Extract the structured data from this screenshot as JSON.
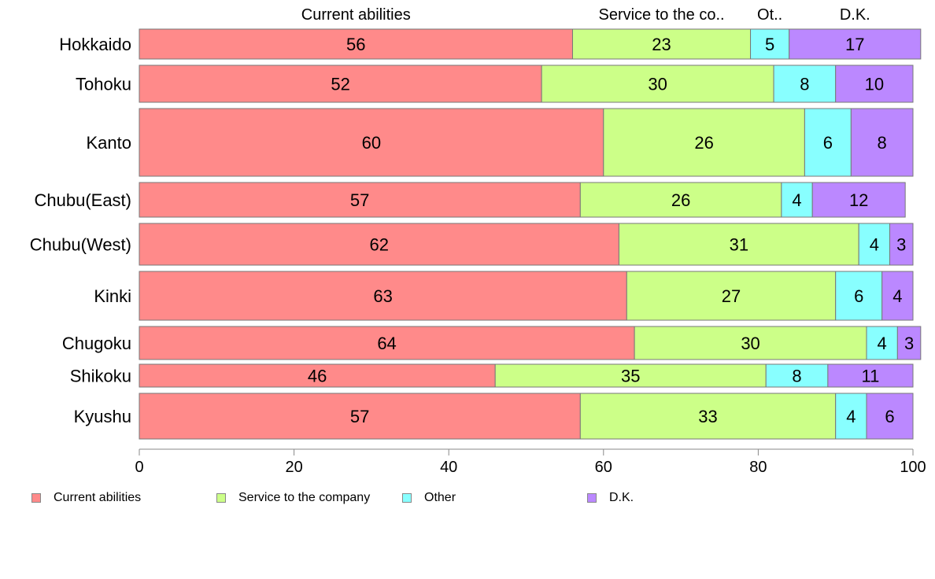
{
  "chart_data": {
    "type": "bar",
    "orientation": "horizontal",
    "stacked": true,
    "categories": [
      "Hokkaido",
      "Tohoku",
      "Kanto",
      "Chubu(East)",
      "Chubu(West)",
      "Kinki",
      "Chugoku",
      "Shikoku",
      "Kyushu"
    ],
    "series": [
      {
        "name": "Current abilities",
        "values": [
          56,
          52,
          60,
          57,
          62,
          63,
          64,
          46,
          57
        ],
        "color": "#ff8a8a"
      },
      {
        "name": "Service to the company",
        "values": [
          23,
          30,
          26,
          26,
          31,
          27,
          30,
          35,
          33
        ],
        "color": "#ccff88"
      },
      {
        "name": "Other",
        "values": [
          5,
          8,
          6,
          4,
          4,
          6,
          4,
          8,
          4
        ],
        "color": "#88ffff"
      },
      {
        "name": "D.K.",
        "values": [
          17,
          10,
          8,
          12,
          3,
          4,
          3,
          11,
          6
        ],
        "color": "#bb88ff"
      }
    ],
    "top_labels": [
      "Current abilities",
      "Service to the co..",
      "Ot..",
      "D.K."
    ],
    "xlim": [
      0,
      100
    ],
    "x_ticks": [
      0,
      20,
      40,
      60,
      80,
      100
    ],
    "legend_position": "bottom-left"
  }
}
